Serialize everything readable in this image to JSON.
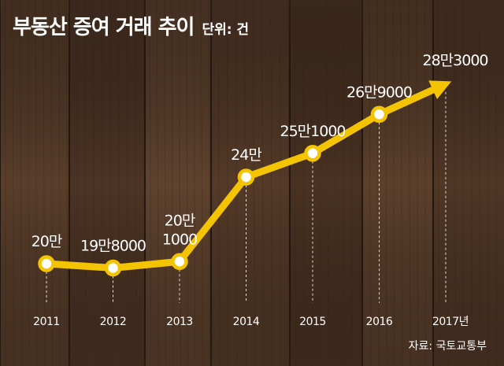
{
  "title": "부동산 증여 거래 추이",
  "unit_label": "단위: 건",
  "source": "자료: 국토교통부",
  "colors": {
    "line": "#f5c400",
    "marker_fill": "#ffffff",
    "text": "#ffffff",
    "background": "#4a3325"
  },
  "chart_data": {
    "type": "line",
    "title": "부동산 증여 거래 추이",
    "x": [
      "2011",
      "2012",
      "2013",
      "2014",
      "2015",
      "2016",
      "2017년"
    ],
    "values": [
      200000,
      198000,
      201000,
      240000,
      251000,
      269000,
      283000
    ],
    "data_labels": [
      [
        "20만"
      ],
      [
        "19만8000"
      ],
      [
        "20만",
        "1000"
      ],
      [
        "24만"
      ],
      [
        "25만1000"
      ],
      [
        "26만9000"
      ],
      [
        "28만3000"
      ]
    ],
    "ylim": [
      180000,
      300000
    ],
    "grid": false,
    "last_point_arrow": true
  }
}
